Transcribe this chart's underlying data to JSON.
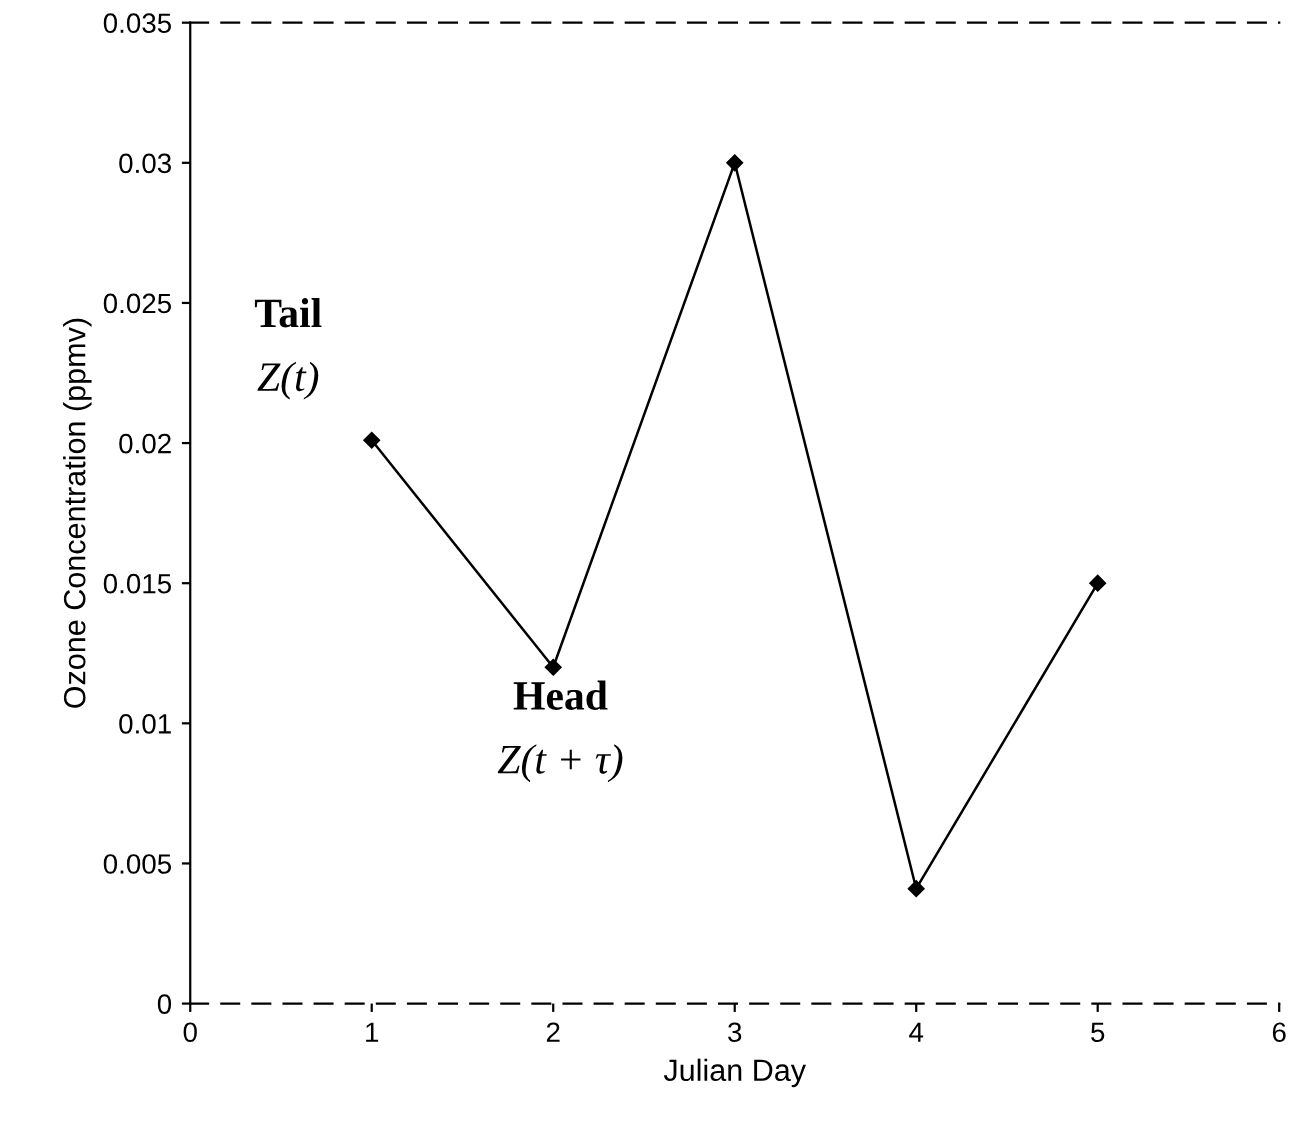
{
  "chart_data": {
    "type": "line",
    "xlabel": "Julian Day",
    "ylabel": "Ozone Concentration (ppmv)",
    "x": [
      1,
      2,
      3,
      4,
      5
    ],
    "series": [
      {
        "color": "#000000",
        "values": [
          0.0201,
          0.012,
          0.03,
          0.0041,
          0.015
        ]
      }
    ],
    "xlim": [
      0,
      6
    ],
    "xticks": [
      0,
      1,
      2,
      3,
      4,
      5,
      6
    ],
    "ylim": [
      0,
      0.035
    ],
    "yticks": [
      0,
      0.005,
      0.01,
      0.015,
      0.02,
      0.025,
      0.03,
      0.035
    ],
    "marker": "diamond",
    "line_style": "solid",
    "grid": false,
    "legend": false,
    "annotations": [
      "Tail",
      "Z(t)",
      "Head",
      "Z(t + τ)"
    ]
  }
}
